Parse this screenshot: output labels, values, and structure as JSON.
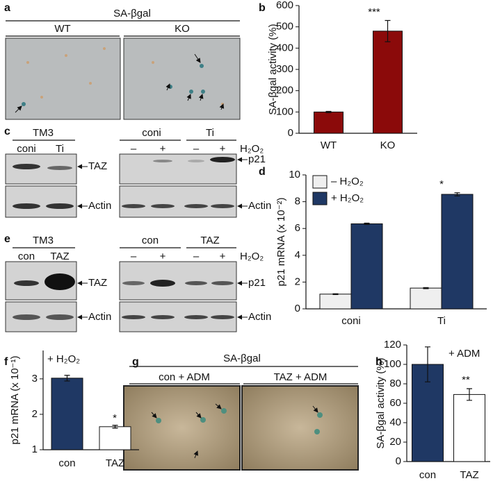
{
  "figure": {
    "a": {
      "label": "a",
      "title": "SA-βgal",
      "columns": [
        "WT",
        "KO"
      ]
    },
    "c": {
      "label": "c",
      "cell_line": "TM3",
      "left_lanes": [
        "coni",
        "Ti"
      ],
      "right_groups": [
        "coni",
        "Ti"
      ],
      "treatment_signs": [
        "–",
        "+",
        "–",
        "+"
      ],
      "treatment": "H₂O₂",
      "left_bands": [
        "TAZ",
        "Actin"
      ],
      "right_bands": [
        "p21",
        "Actin"
      ]
    },
    "e": {
      "label": "e",
      "cell_line": "TM3",
      "left_lanes": [
        "con",
        "TAZ"
      ],
      "right_groups": [
        "con",
        "TAZ"
      ],
      "treatment_signs": [
        "–",
        "+",
        "–",
        "+"
      ],
      "treatment": "H₂O₂",
      "left_bands": [
        "TAZ",
        "Actin"
      ],
      "right_bands": [
        "p21",
        "Actin"
      ]
    },
    "g": {
      "label": "g",
      "title": "SA-βgal",
      "columns": [
        "con + ADM",
        "TAZ + ADM"
      ]
    }
  },
  "chart_data": [
    {
      "type": "bar",
      "panel_label": "b",
      "ylabel": "SA-βgal activity (%)",
      "categories": [
        "WT",
        "KO"
      ],
      "values": [
        100,
        480
      ],
      "errors": [
        3,
        50
      ],
      "color": "#8b0a0a",
      "ylim": [
        0,
        600
      ],
      "yticks": [
        0,
        100,
        200,
        300,
        400,
        500,
        600
      ],
      "annotations": [
        "***"
      ]
    },
    {
      "type": "grouped_bar",
      "panel_label": "d",
      "ylabel": "p21 mRNA (x 10⁻²)",
      "categories": [
        "coni",
        "Ti"
      ],
      "series": [
        {
          "name": "– H₂O₂",
          "color": "#efefef",
          "values": [
            1.1,
            1.55
          ],
          "errors": [
            0.03,
            0.04
          ]
        },
        {
          "name": "+ H₂O₂",
          "color": "#1f3864",
          "values": [
            6.35,
            8.55
          ],
          "errors": [
            0.05,
            0.12
          ]
        }
      ],
      "ylim": [
        0,
        10
      ],
      "yticks": [
        0,
        2,
        4,
        6,
        8,
        10
      ],
      "legend": "upper left",
      "annotations": [
        "*"
      ]
    },
    {
      "type": "bar",
      "panel_label": "f",
      "ylabel": "p21 mRNA (x 10⁻¹)",
      "categories": [
        "con",
        "TAZ"
      ],
      "values": [
        3.02,
        1.65
      ],
      "errors": [
        0.08,
        0.04
      ],
      "colors": [
        "#1f3864",
        "#ffffff"
      ],
      "ylim": [
        1,
        3.8
      ],
      "yticks": [
        1,
        2,
        3
      ],
      "annotations": [
        "+ H₂O₂",
        "*"
      ]
    },
    {
      "type": "bar",
      "panel_label": "h",
      "ylabel": "SA-βgal activity (%)",
      "categories": [
        "con",
        "TAZ"
      ],
      "values": [
        100,
        69
      ],
      "errors": [
        18,
        6
      ],
      "colors": [
        "#1f3864",
        "#ffffff"
      ],
      "ylim": [
        0,
        120
      ],
      "yticks": [
        0,
        20,
        40,
        60,
        80,
        100,
        120
      ],
      "annotations": [
        "+ ADM",
        "**"
      ]
    }
  ]
}
